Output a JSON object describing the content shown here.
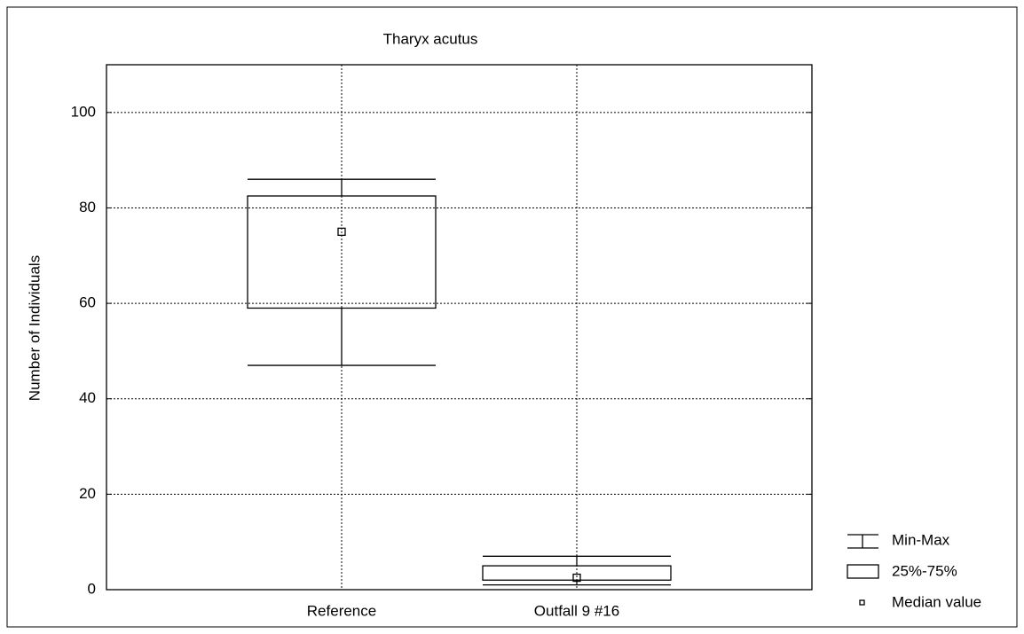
{
  "chart_data": {
    "type": "box",
    "title": "Tharyx acutus",
    "y_label": "Number of Individuals",
    "categories": [
      "Reference",
      "Outfall 9 #16"
    ],
    "min": [
      47,
      1
    ],
    "q1": [
      59,
      2
    ],
    "median": [
      75,
      2.5
    ],
    "q3": [
      82.5,
      5
    ],
    "max": [
      86,
      7
    ],
    "color": "#000000",
    "ylim": [
      0,
      110
    ],
    "yticks": [
      0,
      20,
      40,
      60,
      80,
      100
    ],
    "grid": true,
    "legend": [
      "Min-Max",
      "25%-75%",
      "Median value"
    ],
    "legend_position": "lower right"
  }
}
